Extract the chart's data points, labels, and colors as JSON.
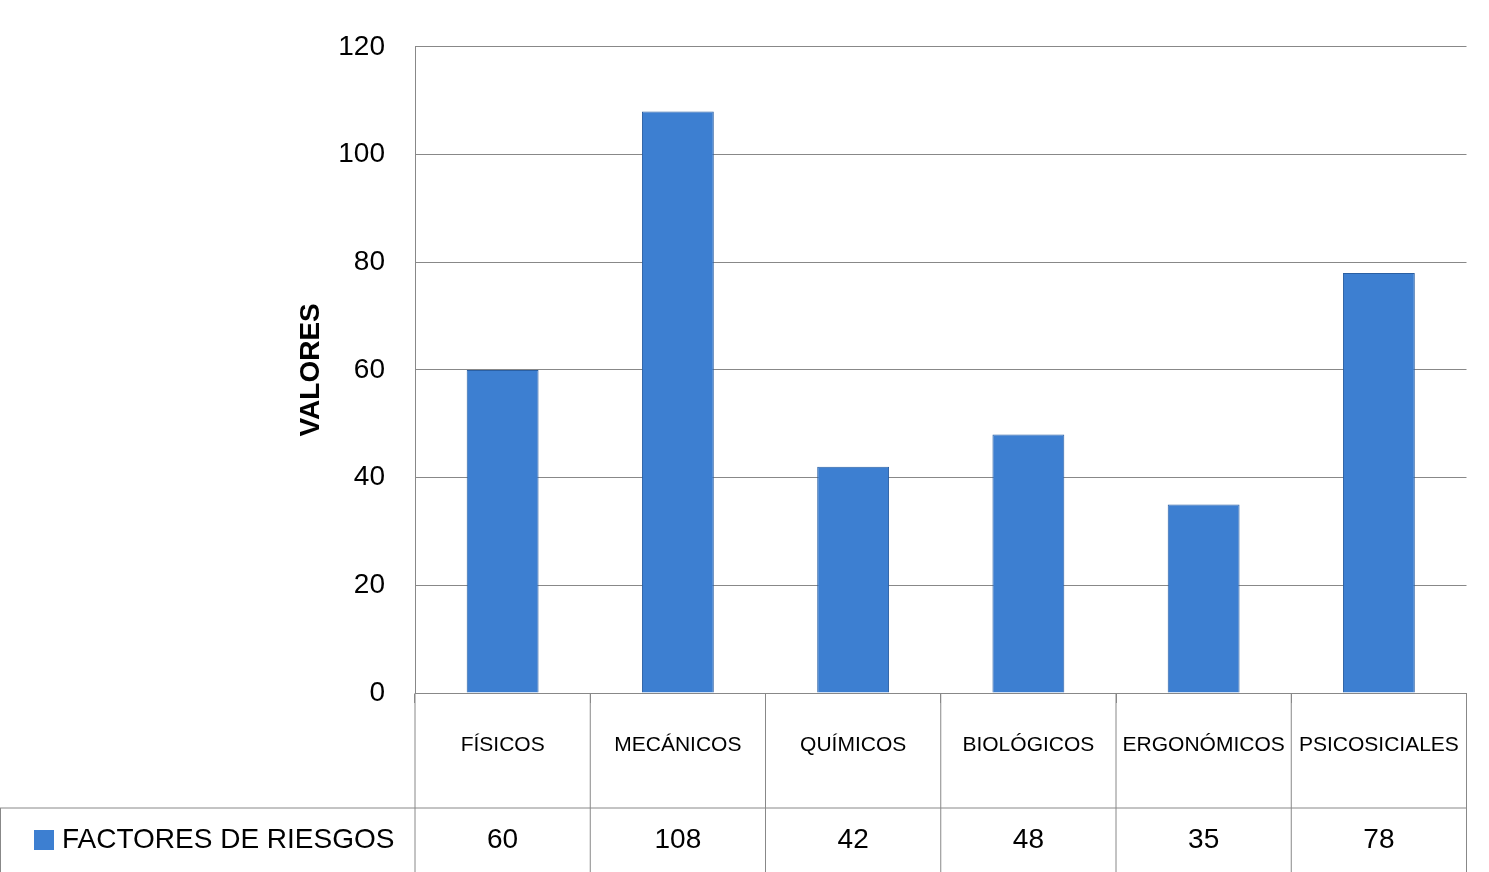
{
  "chart_data": {
    "type": "bar",
    "ylabel": "VALORES",
    "categories": [
      "FÍSICOS",
      "MECÁNICOS",
      "QUÍMICOS",
      "BIOLÓGICOS",
      "ERGONÓMICOS",
      "PSICOSICIALES"
    ],
    "series": [
      {
        "name": "FACTORES DE RIESGOS",
        "color": "#3d7fd1",
        "values": [
          60,
          108,
          42,
          48,
          35,
          78
        ]
      }
    ],
    "ylim": [
      0,
      120
    ],
    "yticks": [
      0,
      20,
      40,
      60,
      80,
      100,
      120
    ],
    "grid": "y",
    "legend": "bottom",
    "data_labels": true
  }
}
